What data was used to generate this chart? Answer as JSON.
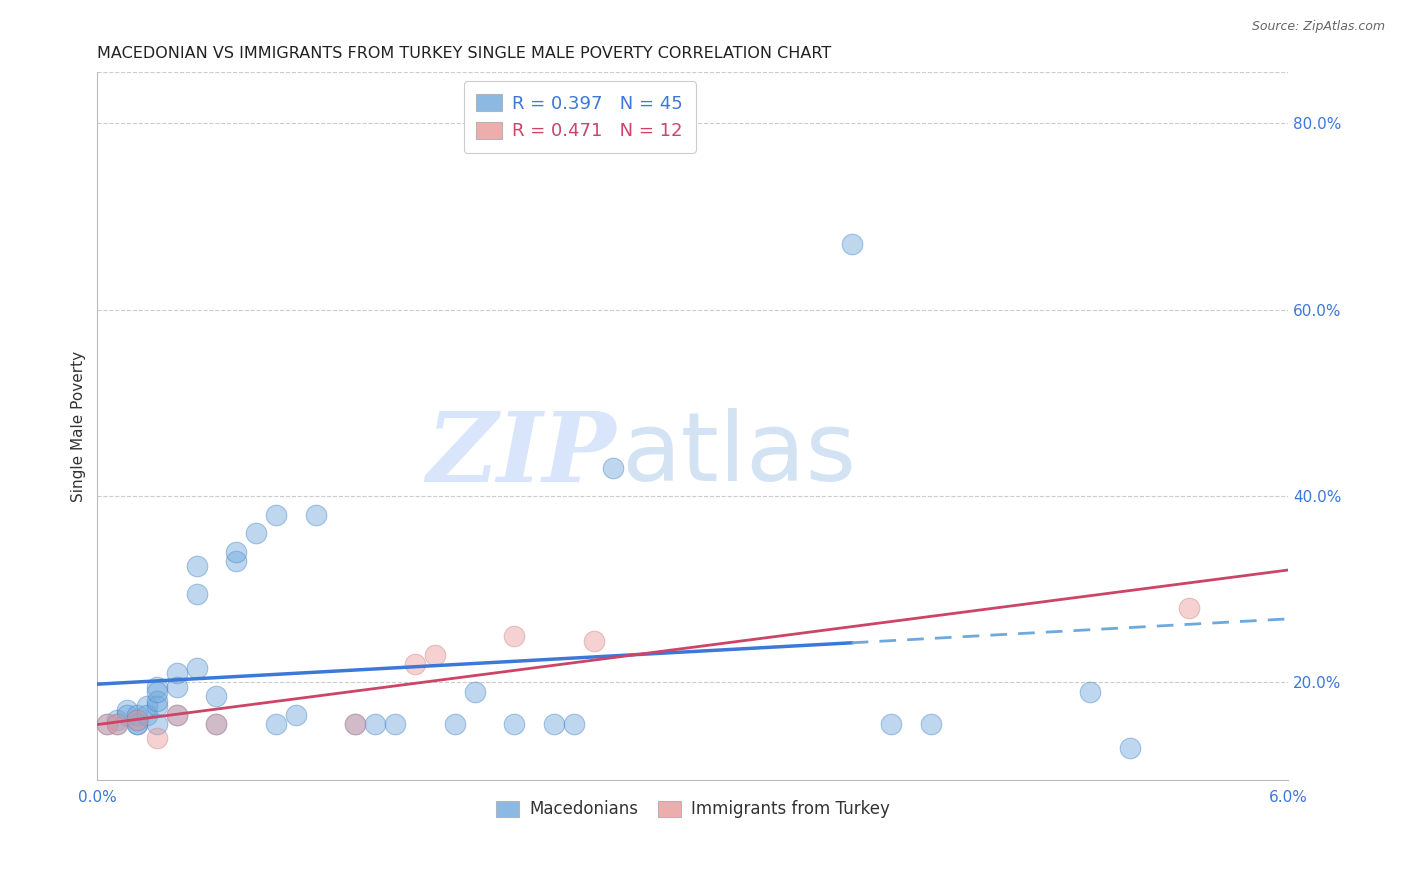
{
  "title": "MACEDONIAN VS IMMIGRANTS FROM TURKEY SINGLE MALE POVERTY CORRELATION CHART",
  "source": "Source: ZipAtlas.com",
  "ylabel": "Single Male Poverty",
  "right_yticks": [
    "80.0%",
    "60.0%",
    "40.0%",
    "20.0%"
  ],
  "right_ytick_vals": [
    0.8,
    0.6,
    0.4,
    0.2
  ],
  "legend1_r": "0.397",
  "legend1_n": "45",
  "legend2_r": "0.471",
  "legend2_n": "12",
  "macedonian_color": "#6fa8dc",
  "turkey_color": "#ea9999",
  "blue_line_color": "#3c78d8",
  "pink_line_color": "#cc4466",
  "dashed_line_color": "#6fa8dc",
  "xlim": [
    0.0,
    0.06
  ],
  "ylim": [
    0.095,
    0.855
  ],
  "macedonian_x": [
    0.0005,
    0.001,
    0.001,
    0.0015,
    0.0015,
    0.002,
    0.002,
    0.002,
    0.002,
    0.0025,
    0.0025,
    0.003,
    0.003,
    0.003,
    0.003,
    0.003,
    0.004,
    0.004,
    0.004,
    0.005,
    0.005,
    0.005,
    0.006,
    0.006,
    0.007,
    0.007,
    0.008,
    0.009,
    0.009,
    0.01,
    0.011,
    0.013,
    0.014,
    0.015,
    0.018,
    0.019,
    0.021,
    0.023,
    0.024,
    0.026,
    0.038,
    0.04,
    0.042,
    0.05,
    0.052
  ],
  "macedonian_y": [
    0.155,
    0.16,
    0.155,
    0.17,
    0.165,
    0.155,
    0.155,
    0.165,
    0.16,
    0.175,
    0.165,
    0.195,
    0.175,
    0.155,
    0.18,
    0.19,
    0.21,
    0.195,
    0.165,
    0.295,
    0.325,
    0.215,
    0.185,
    0.155,
    0.33,
    0.34,
    0.36,
    0.155,
    0.38,
    0.165,
    0.38,
    0.155,
    0.155,
    0.155,
    0.155,
    0.19,
    0.155,
    0.155,
    0.155,
    0.43,
    0.67,
    0.155,
    0.155,
    0.19,
    0.13
  ],
  "turkey_x": [
    0.0005,
    0.001,
    0.002,
    0.003,
    0.004,
    0.006,
    0.013,
    0.016,
    0.017,
    0.021,
    0.025,
    0.055
  ],
  "turkey_y": [
    0.155,
    0.155,
    0.16,
    0.14,
    0.165,
    0.155,
    0.155,
    0.22,
    0.23,
    0.25,
    0.245,
    0.28
  ],
  "background_color": "#ffffff",
  "grid_color": "#cccccc",
  "title_fontsize": 11.5,
  "axis_label_fontsize": 11,
  "tick_fontsize": 11,
  "legend_fontsize": 13
}
